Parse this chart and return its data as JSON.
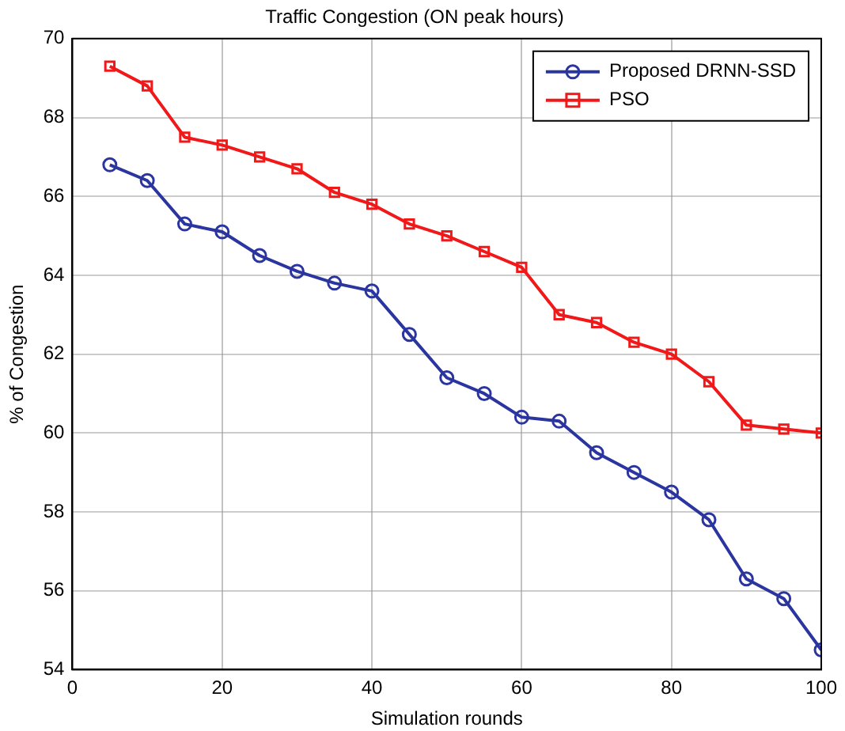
{
  "chart_data": {
    "type": "line",
    "title": "Traffic Congestion (ON peak hours)",
    "xlabel": "Simulation rounds",
    "ylabel": "% of Congestion",
    "x": [
      5,
      10,
      15,
      20,
      25,
      30,
      35,
      40,
      45,
      50,
      55,
      60,
      65,
      70,
      75,
      80,
      85,
      90,
      95,
      100
    ],
    "series": [
      {
        "name": "Proposed DRNN-SSD",
        "color": "#2b35a0",
        "marker": "circle",
        "values": [
          66.8,
          66.4,
          65.3,
          65.1,
          64.5,
          64.1,
          63.8,
          63.6,
          62.5,
          61.4,
          61.0,
          60.4,
          60.3,
          59.5,
          59.0,
          58.5,
          57.8,
          56.3,
          55.8,
          54.5
        ]
      },
      {
        "name": "PSO",
        "color": "#f01818",
        "marker": "square",
        "values": [
          69.3,
          68.8,
          67.5,
          67.3,
          67.0,
          66.7,
          66.1,
          65.8,
          65.3,
          65.0,
          64.6,
          64.2,
          63.0,
          62.8,
          62.3,
          62.0,
          61.3,
          60.2,
          60.1,
          60.0
        ]
      }
    ],
    "xlim": [
      0,
      100
    ],
    "xticks": [
      0,
      20,
      40,
      60,
      80,
      100
    ],
    "ylim": [
      54,
      70
    ],
    "yticks": [
      54,
      56,
      58,
      60,
      62,
      64,
      66,
      68,
      70
    ],
    "grid": true,
    "legend": "top right",
    "line_style": "solid"
  }
}
